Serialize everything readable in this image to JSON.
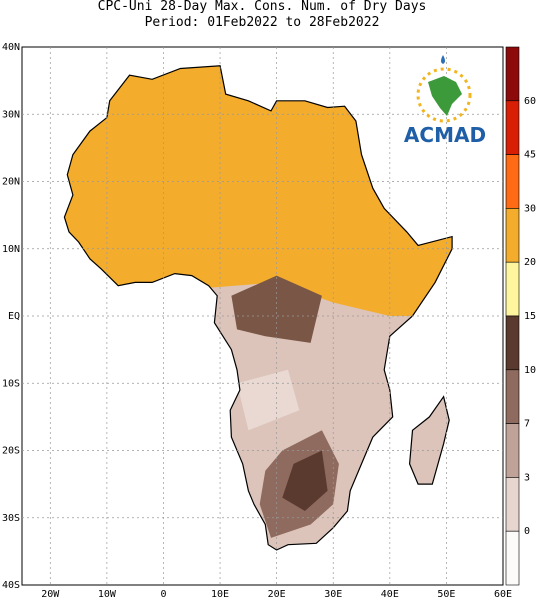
{
  "header": {
    "title": "CPC-Uni 28-Day Max. Cons. Num. of Dry Days",
    "period": "Period: 01Feb2022 to 28Feb2022"
  },
  "axes": {
    "lat_labels": [
      "40N",
      "30N",
      "20N",
      "10N",
      "EQ",
      "10S",
      "20S",
      "30S",
      "40S"
    ],
    "lon_labels": [
      "20W",
      "10W",
      "0",
      "10E",
      "20E",
      "30E",
      "40E",
      "50E",
      "60E"
    ]
  },
  "colorbar": {
    "labels": [
      60,
      45,
      30,
      20,
      15,
      10,
      7,
      3,
      0
    ],
    "colors": [
      "#8c0a0a",
      "#d81e05",
      "#ff6a14",
      "#f3ac2c",
      "#fff59e",
      "#5a3a2e",
      "#8e6b5e",
      "#bfa398",
      "#e7d6cf",
      "#fdfbfa"
    ]
  },
  "logo": {
    "text": "ACMAD"
  }
}
